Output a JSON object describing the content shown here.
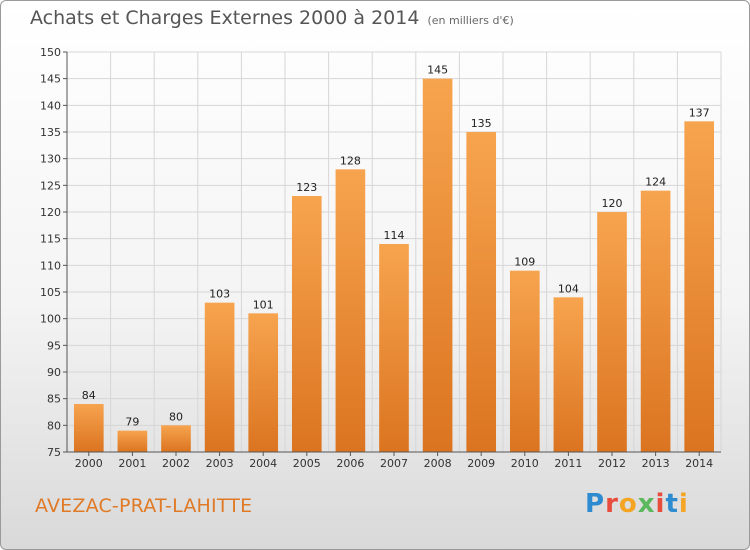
{
  "title": "Achats et Charges Externes 2000 à 2014",
  "subtitle": "(en milliers d'€)",
  "commune": "AVEZAC-PRAT-LAHITTE",
  "logo": [
    "P",
    "r",
    "o",
    "x",
    "i",
    "t",
    "i"
  ],
  "logo_colors": [
    "#2e8bd0",
    "#e84c3d",
    "#f3a523",
    "#5cb85c",
    "#e84c3d",
    "#2e8bd0",
    "#f3a523"
  ],
  "bar_color_top": "#f7a44f",
  "bar_color_bottom": "#db7420",
  "chart_data": {
    "type": "bar",
    "categories": [
      "2000",
      "2001",
      "2002",
      "2003",
      "2004",
      "2005",
      "2006",
      "2007",
      "2008",
      "2009",
      "2010",
      "2011",
      "2012",
      "2013",
      "2014"
    ],
    "values": [
      84,
      79,
      80,
      103,
      101,
      123,
      128,
      114,
      145,
      135,
      109,
      104,
      120,
      124,
      137
    ],
    "ylim": [
      75,
      150
    ],
    "yticks": [
      75,
      80,
      85,
      90,
      95,
      100,
      105,
      110,
      115,
      120,
      125,
      130,
      135,
      140,
      145,
      150
    ],
    "grid": true
  }
}
